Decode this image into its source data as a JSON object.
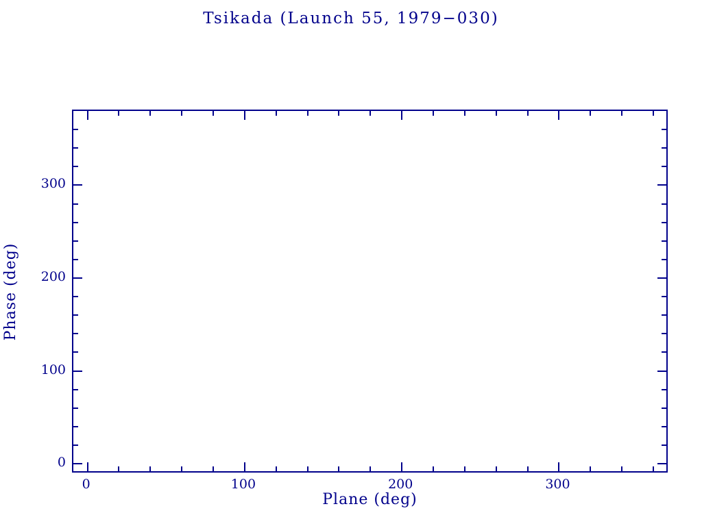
{
  "chart_data": {
    "type": "scatter",
    "title": "Tsikada (Launch 55, 1979−030)",
    "xlabel": "Plane (deg)",
    "ylabel": "Phase (deg)",
    "xlim": [
      -9,
      370
    ],
    "ylim": [
      -11,
      380
    ],
    "x_axis": {
      "major_tick_values": [
        0,
        100,
        200,
        300
      ],
      "major_tick_labels": [
        "0",
        "100",
        "200",
        "300"
      ],
      "minor_tick_step": 20
    },
    "y_axis": {
      "major_tick_values": [
        0,
        100,
        200,
        300
      ],
      "major_tick_labels": [
        "0",
        "100",
        "200",
        "300"
      ],
      "minor_tick_step": 20
    },
    "points": [],
    "grid": false,
    "legend": null,
    "colors": {
      "frame": "#00008B",
      "text": "#00008B",
      "background": "#FFFFFF"
    }
  }
}
